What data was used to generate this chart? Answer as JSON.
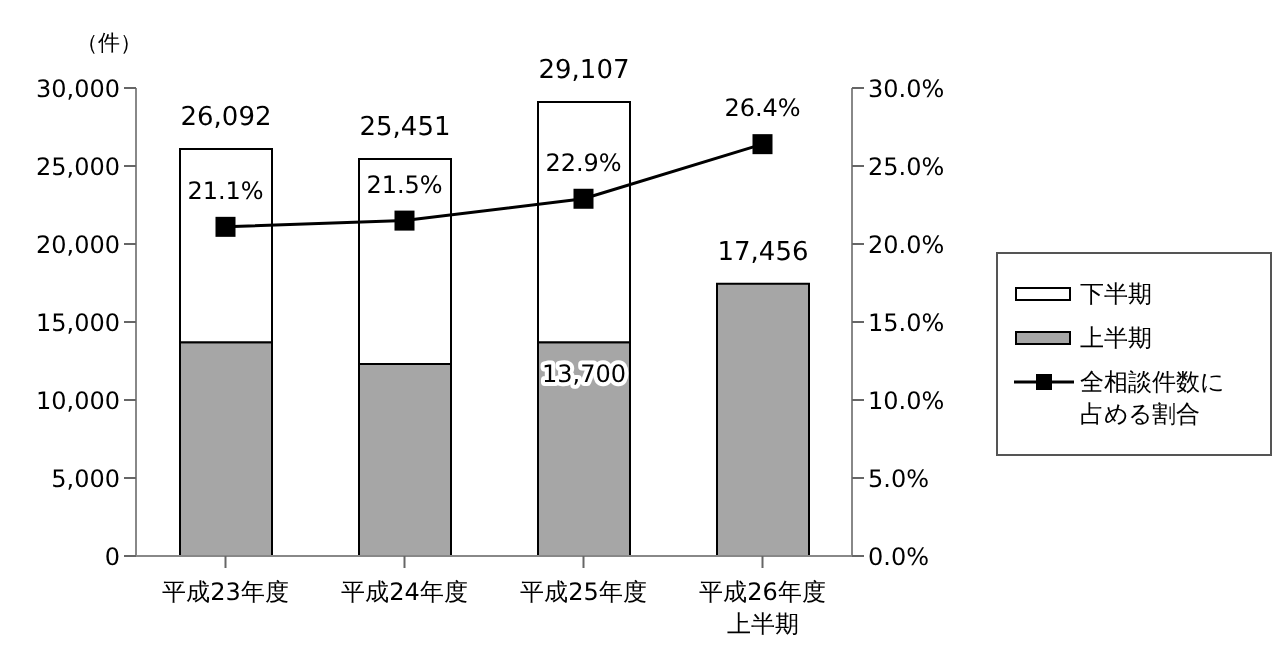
{
  "chart_data": {
    "type": "bar",
    "ylabel": "（件）",
    "categories": [
      "平成23年度",
      "平成24年度",
      "平成25年度",
      "平成26年度上半期"
    ],
    "stacked": true,
    "series": [
      {
        "name": "上半期",
        "color": "#a6a6a6",
        "values": [
          13700,
          12300,
          13700,
          17456
        ],
        "value_labels": [
          null,
          null,
          "13,700",
          null
        ]
      },
      {
        "name": "下半期",
        "color": "#ffffff",
        "values": [
          12392,
          13151,
          15407,
          null
        ]
      },
      {
        "name": "全相談件数に占める割合",
        "type": "line",
        "axis": "y2",
        "color": "#000000",
        "values": [
          21.1,
          21.5,
          22.9,
          26.4
        ],
        "value_labels": [
          "21.1%",
          "21.5%",
          "22.9%",
          "26.4%"
        ]
      }
    ],
    "totals": [
      "26,092",
      "25,451",
      "29,107",
      "17,456"
    ],
    "ylim": [
      0,
      30000
    ],
    "yticks": [
      0,
      {
        "value": 5000,
        "label": "5,000"
      },
      {
        "value": 10000,
        "label": "10,000"
      },
      {
        "value": 15000,
        "label": "15,000"
      },
      {
        "value": 20000,
        "label": "20,000"
      },
      {
        "value": 25000,
        "label": "25,000"
      },
      {
        "value": 30000,
        "label": "30,000"
      }
    ],
    "y2lim": [
      0,
      30
    ],
    "y2ticks": [
      {
        "value": 0,
        "label": "0.0%"
      },
      {
        "value": 5,
        "label": "5.0%"
      },
      {
        "value": 10,
        "label": "10.0%"
      },
      {
        "value": 15,
        "label": "15.0%"
      },
      {
        "value": 20,
        "label": "20.0%"
      },
      {
        "value": 25,
        "label": "25.0%"
      },
      {
        "value": 30,
        "label": "30.0%"
      }
    ],
    "grid": false,
    "legend": "right",
    "marker": "square",
    "line_style": "solid"
  }
}
